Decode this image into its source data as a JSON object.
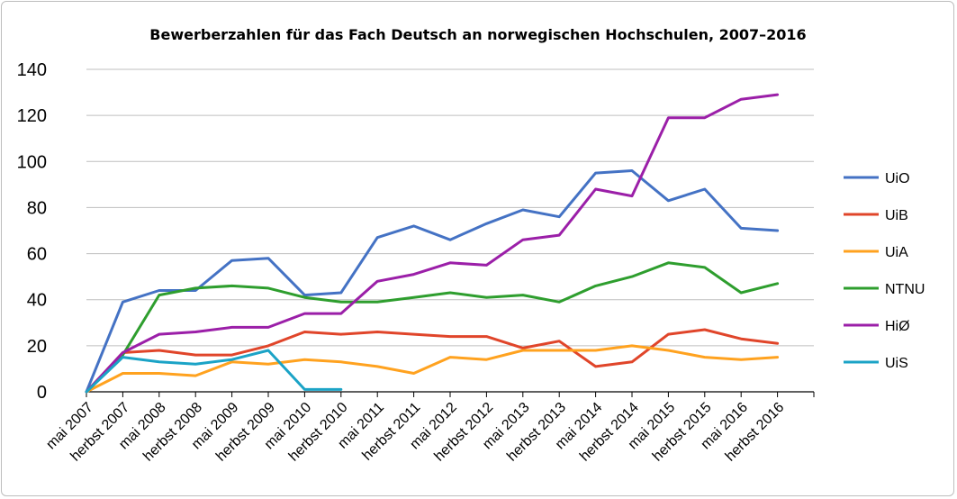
{
  "chart_data": {
    "type": "line",
    "title": "Bewerberzahlen für das Fach Deutsch an norwegischen Hochschulen, 2007–2016",
    "xlabel": "",
    "ylabel": "",
    "ylim": [
      0,
      140
    ],
    "yticks": [
      0,
      20,
      40,
      60,
      80,
      100,
      120,
      140
    ],
    "grid": true,
    "legend_position": "right",
    "categories": [
      "mai 2007",
      "herbst 2007",
      "mai 2008",
      "herbst 2008",
      "mai 2009",
      "herbst 2009",
      "mai 2010",
      "herbst 2010",
      "mai 2011",
      "herbst 2011",
      "mai 2012",
      "herbst 2012",
      "mai 2013",
      "herbst 2013",
      "mai 2014",
      "herbst 2014",
      "mai 2015",
      "herbst 2015",
      "mai 2016",
      "herbst 2016"
    ],
    "series": [
      {
        "name": "UiO",
        "color": "#4472C4",
        "values": [
          0,
          39,
          44,
          44,
          57,
          58,
          42,
          43,
          67,
          72,
          66,
          73,
          79,
          76,
          95,
          96,
          83,
          88,
          71,
          70
        ]
      },
      {
        "name": "UiB",
        "color": "#E0452A",
        "values": [
          0,
          17,
          18,
          16,
          16,
          20,
          26,
          25,
          26,
          25,
          24,
          24,
          19,
          22,
          11,
          13,
          25,
          27,
          23,
          21
        ]
      },
      {
        "name": "UiA",
        "color": "#FFA21F",
        "values": [
          0,
          8,
          8,
          7,
          13,
          12,
          14,
          13,
          11,
          8,
          15,
          14,
          18,
          18,
          18,
          20,
          18,
          15,
          14,
          15
        ]
      },
      {
        "name": "NTNU",
        "color": "#2E9E2E",
        "values": [
          0,
          16,
          42,
          45,
          46,
          45,
          41,
          39,
          39,
          41,
          43,
          41,
          42,
          39,
          46,
          50,
          56,
          54,
          43,
          47
        ]
      },
      {
        "name": "HiØ",
        "color": "#9B1FA8",
        "values": [
          0,
          17,
          25,
          26,
          28,
          28,
          34,
          34,
          48,
          51,
          56,
          55,
          66,
          68,
          88,
          85,
          119,
          119,
          127,
          129
        ]
      },
      {
        "name": "UiS",
        "color": "#1BA3C6",
        "values": [
          0,
          15,
          13,
          12,
          14,
          18,
          1,
          1,
          null,
          null,
          null,
          null,
          null,
          null,
          null,
          null,
          null,
          null,
          null,
          null
        ]
      }
    ]
  }
}
